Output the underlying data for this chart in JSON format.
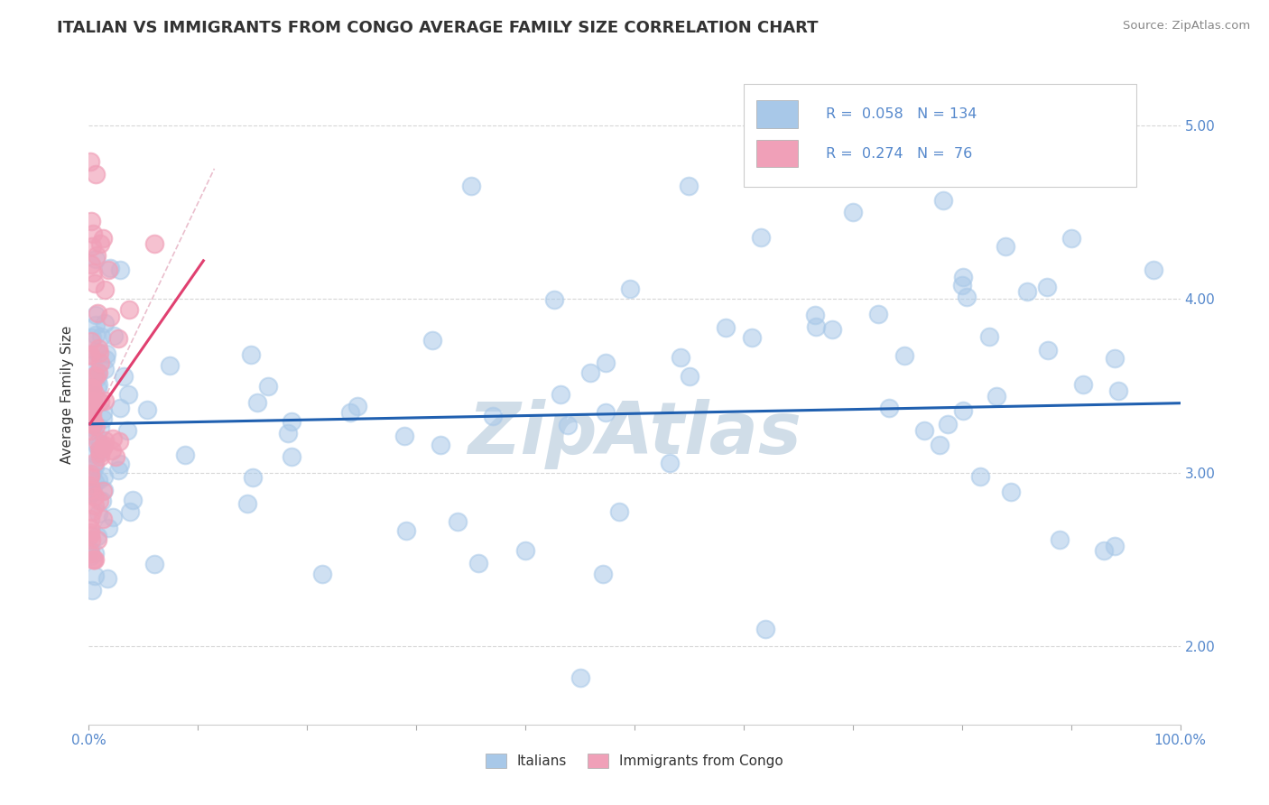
{
  "title": "ITALIAN VS IMMIGRANTS FROM CONGO AVERAGE FAMILY SIZE CORRELATION CHART",
  "source_text": "Source: ZipAtlas.com",
  "ylabel": "Average Family Size",
  "xlim": [
    0.0,
    1.0
  ],
  "ylim": [
    1.55,
    5.35
  ],
  "yticks": [
    2.0,
    3.0,
    4.0,
    5.0
  ],
  "xticks": [
    0.0,
    0.1,
    0.2,
    0.3,
    0.4,
    0.5,
    0.6,
    0.7,
    0.8,
    0.9,
    1.0
  ],
  "xtick_labels": [
    "0.0%",
    "",
    "",
    "",
    "",
    "",
    "",
    "",
    "",
    "",
    "100.0%"
  ],
  "legend_labels": [
    "Italians",
    "Immigrants from Congo"
  ],
  "R_italian": 0.058,
  "N_italian": 134,
  "R_congo": 0.274,
  "N_congo": 76,
  "italian_color": "#a8c8e8",
  "congo_color": "#f0a0b8",
  "italian_line_color": "#2060b0",
  "congo_line_color": "#e04070",
  "diag_line_color": "#e8b8c8",
  "title_color": "#333333",
  "tick_color": "#5588cc",
  "watermark_color": "#d0dde8",
  "watermark_text": "ZipAtlas",
  "background_color": "#ffffff",
  "grid_color": "#cccccc",
  "legend_border_color": "#cccccc"
}
